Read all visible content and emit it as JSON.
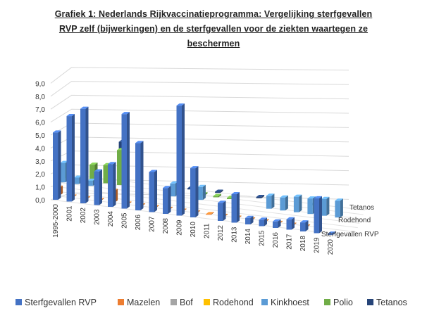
{
  "page": {
    "title_line1": "Grafiek 1: Nederlands Rijkvaccinatieprogramma: Vergelijking sterfgevallen",
    "title_line2": "RVP zelf (bijwerkingen) en de sterfgevallen voor de ziekten waartegen ze",
    "title_line3": "beschermen"
  },
  "chart_data": {
    "type": "bar",
    "variant": "3d-column",
    "title": "Grafiek 1: Nederlands Rijkvaccinatieprogramma: Vergelijking sterfgevallen RVP zelf (bijwerkingen) en de sterfgevallen voor de ziekten waartegen ze beschermen",
    "categories": [
      "1995-2000",
      "2001",
      "2002",
      "2003",
      "2004",
      "2005",
      "2006",
      "2007",
      "2008",
      "2009",
      "2010",
      "2011",
      "2012",
      "2013",
      "2014",
      "2015",
      "2016",
      "2017",
      "2018",
      "2019",
      "2020"
    ],
    "y_ticks": [
      "0,0",
      "1,0",
      "2,0",
      "3,0",
      "4,0",
      "5,0",
      "6,0",
      "7,0",
      "8,0",
      "9,0"
    ],
    "ylim": [
      0,
      9
    ],
    "grid": true,
    "legend_position": "bottom",
    "depth_labels": [
      "Tetanos",
      "Rodehond",
      "Sterfgevallen RVP"
    ],
    "series": [
      {
        "name": "Sterfgevallen RVP",
        "color": "#4472C4",
        "values": [
          5.2,
          6.6,
          7.3,
          2.6,
          3.3,
          7.3,
          5.2,
          3.1,
          2.0,
          8.5,
          3.8,
          0,
          1.4,
          2.2,
          0.5,
          0.5,
          0.5,
          0.8,
          0.7,
          2.7,
          0.1
        ]
      },
      {
        "name": "Mazelen",
        "color": "#ED7D31",
        "values": [
          0.6,
          0.05,
          0.05,
          0.05,
          0.9,
          0.05,
          0.05,
          0.05,
          0.05,
          0.05,
          0.05,
          0.05,
          0.05,
          0.05,
          0.05,
          0.05,
          0.05,
          0.05,
          0.05,
          0,
          0
        ]
      },
      {
        "name": "Bof",
        "color": "#A5A5A5",
        "values": [
          0,
          0,
          0,
          0,
          0,
          0,
          0,
          0,
          0,
          0,
          0,
          0,
          0,
          0,
          0,
          0,
          0,
          0,
          0,
          0,
          0
        ]
      },
      {
        "name": "Rodehond",
        "color": "#FFC000",
        "values": [
          0,
          0,
          0,
          0,
          0,
          0,
          0,
          0,
          0,
          0,
          0,
          0,
          0,
          0,
          0,
          0,
          0,
          0,
          0,
          0,
          0
        ]
      },
      {
        "name": "Kinkhoest",
        "color": "#5B9BD5",
        "values": [
          1.5,
          0.5,
          0.4,
          0,
          0,
          0,
          0,
          0,
          1.0,
          0,
          1.0,
          0,
          0,
          0,
          0,
          1.0,
          1.0,
          1.2,
          1.2,
          1.3,
          1.3
        ]
      },
      {
        "name": "Polio",
        "color": "#70AD47",
        "values": [
          1.0,
          0,
          1.3,
          1.4,
          2.7,
          0,
          0,
          0,
          0,
          0,
          0.1,
          0.1,
          0.1,
          0,
          0,
          0,
          0,
          0,
          0,
          0,
          0
        ]
      },
      {
        "name": "Tetanos",
        "color": "#264478",
        "values": [
          0,
          0,
          0,
          0,
          3.0,
          0,
          0,
          0,
          0,
          0.1,
          0,
          0.1,
          0,
          0,
          0.1,
          0,
          0,
          0,
          0.1,
          0,
          0
        ]
      }
    ]
  }
}
